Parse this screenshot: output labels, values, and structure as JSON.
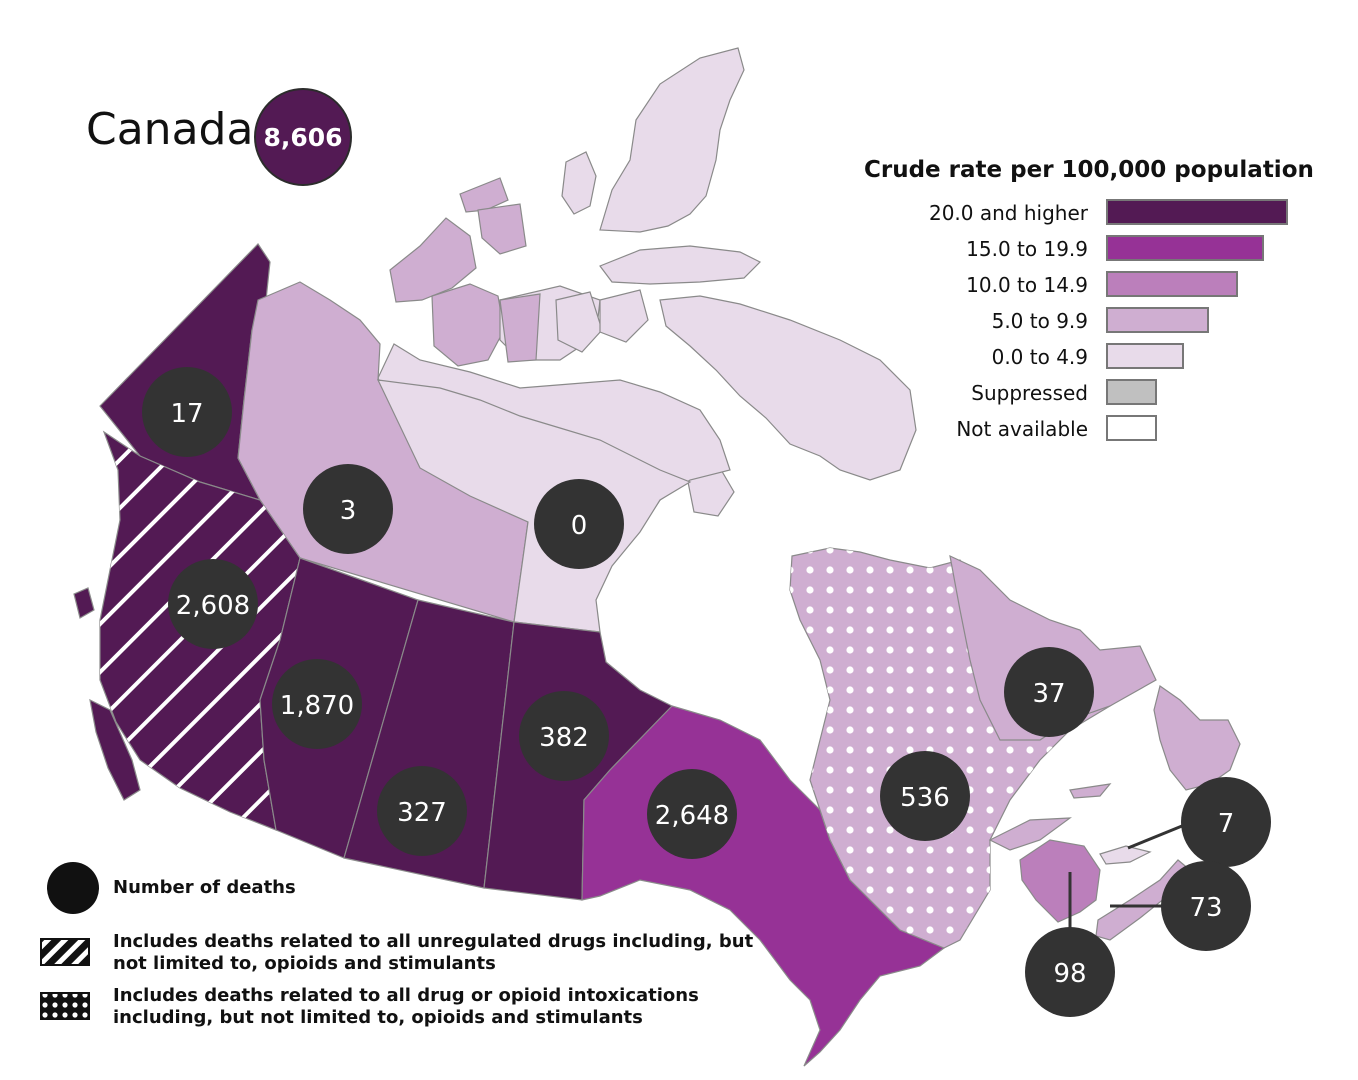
{
  "title": "Canada",
  "total_deaths": "8,606",
  "legend": {
    "title": "Crude rate per 100,000 population",
    "items": [
      {
        "label": "20.0 and higher",
        "color": "#531a54"
      },
      {
        "label": "15.0 to 19.9",
        "color": "#963296"
      },
      {
        "label": "10.0 to 14.9",
        "color": "#bb7fbb"
      },
      {
        "label": "5.0 to 9.9",
        "color": "#cfaed1"
      },
      {
        "label": "0.0 to 4.9",
        "color": "#e8dbea"
      },
      {
        "label": "Suppressed",
        "color": "#c0c0c0"
      },
      {
        "label": "Not available",
        "color": "#ffffff"
      }
    ]
  },
  "regions": [
    {
      "id": "yukon",
      "deaths": "17",
      "rate_class": "20.0 and higher"
    },
    {
      "id": "northwest-territories",
      "deaths": "3",
      "rate_class": "5.0 to 9.9"
    },
    {
      "id": "nunavut",
      "deaths": "0",
      "rate_class": "0.0 to 4.9"
    },
    {
      "id": "british-columbia",
      "deaths": "2,608",
      "rate_class": "20.0 and higher",
      "pattern": "hatch"
    },
    {
      "id": "alberta",
      "deaths": "1,870",
      "rate_class": "20.0 and higher"
    },
    {
      "id": "saskatchewan",
      "deaths": "327",
      "rate_class": "20.0 and higher"
    },
    {
      "id": "manitoba",
      "deaths": "382",
      "rate_class": "20.0 and higher"
    },
    {
      "id": "ontario",
      "deaths": "2,648",
      "rate_class": "15.0 to 19.9"
    },
    {
      "id": "quebec",
      "deaths": "536",
      "rate_class": "5.0 to 9.9",
      "pattern": "dots"
    },
    {
      "id": "newfoundland-and-labrador",
      "deaths": "37",
      "rate_class": "5.0 to 9.9"
    },
    {
      "id": "prince-edward-island",
      "deaths": "7",
      "rate_class": "5.0 to 9.9"
    },
    {
      "id": "nova-scotia",
      "deaths": "73",
      "rate_class": "5.0 to 9.9"
    },
    {
      "id": "new-brunswick",
      "deaths": "98",
      "rate_class": "10.0 to 14.9"
    }
  ],
  "footnotes": {
    "number_of_deaths": "Number of deaths",
    "hatch_line1": "Includes deaths related to all unregulated drugs including, but",
    "hatch_line2": "not limited to, opioids and stimulants",
    "dots_line1": "Includes deaths related to all drug or opioid intoxications",
    "dots_line2": "including, but not limited to, opioids and stimulants"
  },
  "colors": {
    "circle": "#333333",
    "border": "#7a7a7a"
  }
}
